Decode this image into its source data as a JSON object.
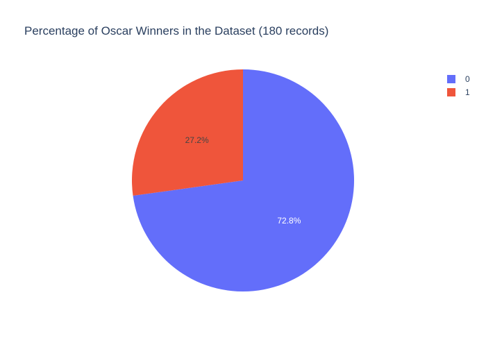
{
  "chart_data": {
    "type": "pie",
    "title": "Percentage of Oscar Winners in the Dataset (180 records)",
    "slices": [
      {
        "label": "0",
        "value": 72.8,
        "display": "72.8%",
        "color": "#636efa",
        "text_color": "#ffffff"
      },
      {
        "label": "1",
        "value": 27.2,
        "display": "27.2%",
        "color": "#ef553b",
        "text_color": "#444444"
      }
    ],
    "legend": {
      "placement": "top-right",
      "entries": [
        {
          "label": "0",
          "color": "#636efa"
        },
        {
          "label": "1",
          "color": "#ef553b"
        }
      ]
    },
    "direction": "clockwise",
    "start_angle": "12 o'clock"
  }
}
